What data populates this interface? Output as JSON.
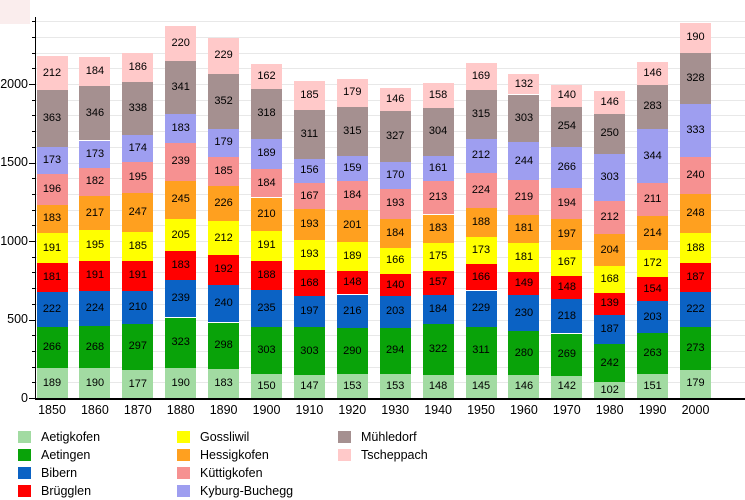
{
  "chart_data": {
    "type": "bar",
    "stacked": true,
    "title": "",
    "xlabel": "",
    "ylabel": "",
    "grid": true,
    "legend_position": "bottom",
    "x": [
      "1850",
      "1860",
      "1870",
      "1880",
      "1890",
      "1900",
      "1910",
      "1920",
      "1930",
      "1940",
      "1950",
      "1960",
      "1970",
      "1980",
      "1990",
      "2000"
    ],
    "y_axis": {
      "ticks": [
        0,
        500,
        1000,
        1500,
        2000
      ],
      "minor_step": 100,
      "grid_max": 2400,
      "ylim": [
        0,
        2400
      ]
    },
    "series": [
      {
        "name": "Aetigkofen",
        "color": "#A2DBA2",
        "values": [
          189,
          190,
          177,
          190,
          183,
          150,
          147,
          153,
          153,
          148,
          145,
          146,
          142,
          102,
          151,
          179
        ]
      },
      {
        "name": "Aetingen",
        "color": "#09A309",
        "values": [
          266,
          268,
          297,
          323,
          298,
          303,
          303,
          290,
          294,
          322,
          311,
          280,
          269,
          242,
          263,
          273
        ]
      },
      {
        "name": "Bibern",
        "color": "#0B62C4",
        "values": [
          222,
          224,
          210,
          239,
          240,
          235,
          197,
          216,
          203,
          184,
          229,
          230,
          218,
          187,
          203,
          222
        ]
      },
      {
        "name": "Brügglen",
        "color": "#FF0000",
        "values": [
          181,
          191,
          191,
          183,
          192,
          188,
          168,
          148,
          140,
          157,
          166,
          149,
          148,
          139,
          154,
          187
        ]
      },
      {
        "name": "Gossliwil",
        "color": "#FFFF00",
        "values": [
          191,
          195,
          185,
          205,
          212,
          191,
          193,
          189,
          166,
          175,
          173,
          181,
          167,
          168,
          172,
          188
        ]
      },
      {
        "name": "Hessigkofen",
        "color": "#FFA01F",
        "values": [
          183,
          217,
          247,
          245,
          226,
          210,
          193,
          201,
          184,
          183,
          188,
          181,
          197,
          204,
          214,
          248
        ]
      },
      {
        "name": "Küttigkofen",
        "color": "#F69191",
        "values": [
          196,
          182,
          195,
          239,
          185,
          184,
          167,
          184,
          193,
          213,
          224,
          219,
          194,
          212,
          211,
          240
        ]
      },
      {
        "name": "Kyburg-Buchegg",
        "color": "#9E9EF0",
        "values": [
          173,
          173,
          174,
          183,
          179,
          189,
          156,
          159,
          170,
          161,
          212,
          244,
          266,
          303,
          344,
          333
        ]
      },
      {
        "name": "Mühledorf",
        "color": "#A59090",
        "values": [
          363,
          346,
          338,
          341,
          352,
          318,
          311,
          315,
          327,
          304,
          315,
          303,
          254,
          250,
          283,
          328
        ]
      },
      {
        "name": "Tscheppach",
        "color": "#FFC9C9",
        "values": [
          212,
          184,
          186,
          220,
          229,
          162,
          185,
          179,
          146,
          158,
          169,
          132,
          140,
          146,
          146,
          190
        ]
      }
    ]
  }
}
